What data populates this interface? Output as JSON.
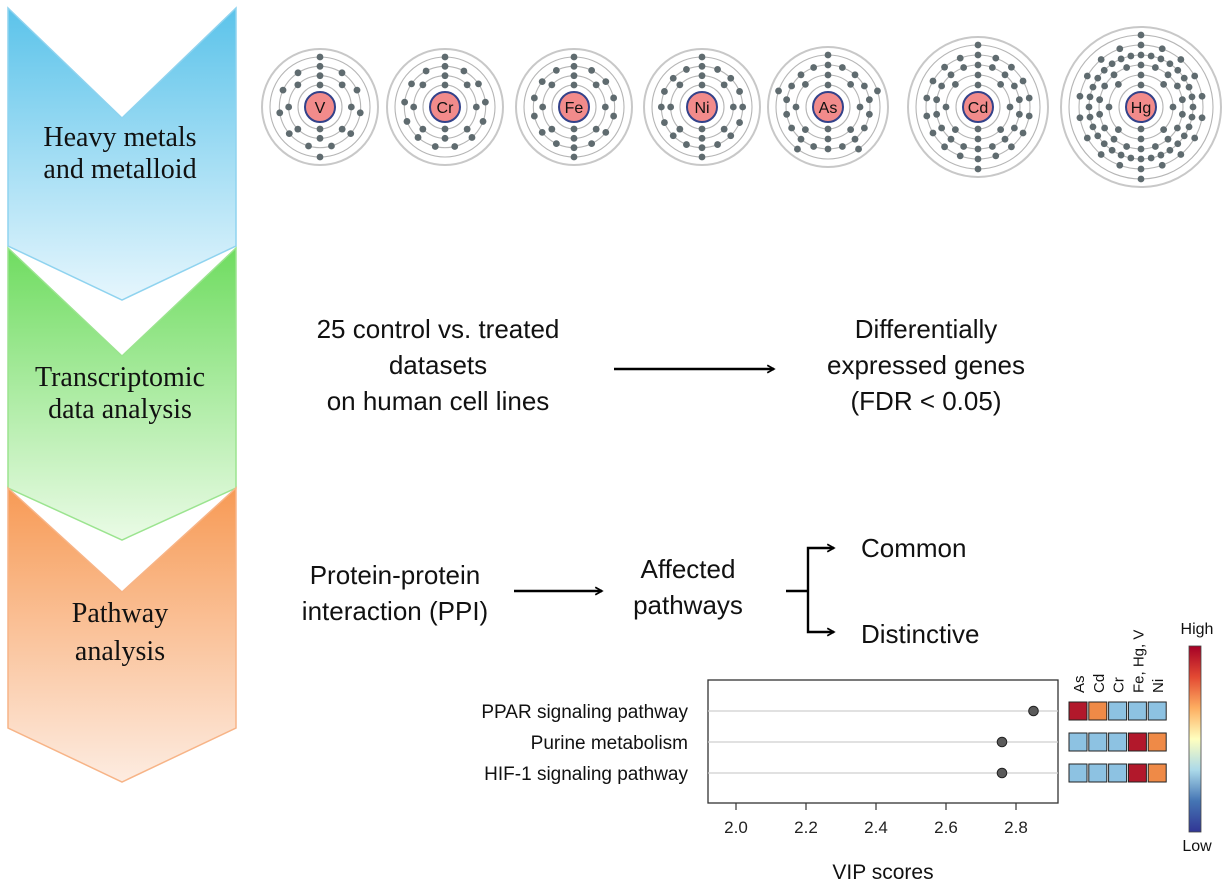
{
  "stages": [
    {
      "lines": [
        "Heavy metals",
        "and metalloid"
      ],
      "color_top": "#5bc3ea",
      "color_bottom": "#e6f6fd",
      "border": "#8fd3ef"
    },
    {
      "lines": [
        "Transcriptomic",
        "data analysis"
      ],
      "color_top": "#6fdc60",
      "color_bottom": "#eafbe6",
      "border": "#9be48f"
    },
    {
      "lines": [
        "Pathway",
        "analysis"
      ],
      "color_top": "#f79a55",
      "color_bottom": "#fdece1",
      "border": "#f7b487"
    }
  ],
  "atoms": [
    {
      "symbol": "V",
      "shells": [
        2,
        8,
        11,
        2
      ]
    },
    {
      "symbol": "Cr",
      "shells": [
        2,
        8,
        13,
        1
      ]
    },
    {
      "symbol": "Fe",
      "shells": [
        2,
        8,
        14,
        2
      ]
    },
    {
      "symbol": "Ni",
      "shells": [
        2,
        8,
        16,
        2
      ]
    },
    {
      "symbol": "As",
      "shells": [
        2,
        8,
        18,
        5
      ]
    },
    {
      "symbol": "Cd",
      "shells": [
        2,
        8,
        18,
        18,
        2
      ]
    },
    {
      "symbol": "Hg",
      "shells": [
        2,
        8,
        18,
        32,
        18,
        2
      ]
    }
  ],
  "transcriptomic": {
    "input_lines": [
      "25 control vs. treated",
      "datasets",
      "on human cell lines"
    ],
    "output_lines": [
      "Differentially",
      "expressed genes",
      "(FDR < 0.05)"
    ]
  },
  "pathway": {
    "input_lines": [
      "Protein-protein",
      "interaction (PPI)"
    ],
    "middle_lines": [
      "Affected",
      "pathways"
    ],
    "branch_top": "Common",
    "branch_bottom": "Distinctive"
  },
  "chart_data": {
    "type": "scatter",
    "title": "",
    "xlabel": "VIP scores",
    "ylabel": "",
    "xlim": [
      1.92,
      2.92
    ],
    "xticks": [
      2.0,
      2.2,
      2.4,
      2.6,
      2.8
    ],
    "xtick_labels": [
      "2.0",
      "2.2",
      "2.4",
      "2.6",
      "2.8"
    ],
    "categories": [
      "PPAR signaling pathway",
      "Purine metabolism",
      "HIF-1 signaling pathway"
    ],
    "values": [
      2.85,
      2.76,
      2.76
    ],
    "heatmap": {
      "columns": [
        "As",
        "Cd",
        "Cr",
        "Fe, Hg, V",
        "Ni"
      ],
      "rows": [
        [
          "high",
          "mid",
          "low",
          "low",
          "low"
        ],
        [
          "low",
          "low",
          "low",
          "high",
          "mid"
        ],
        [
          "low",
          "low",
          "low",
          "high",
          "mid"
        ]
      ],
      "colors": {
        "high": "#b2182b",
        "mid": "#ef8a47",
        "low": "#8dc2e2"
      }
    },
    "colorbar": {
      "high_label": "High",
      "low_label": "Low",
      "gradient": [
        "#a50026",
        "#e34a33",
        "#fdae61",
        "#ffffbf",
        "#abd9e9",
        "#4575b4",
        "#313695"
      ]
    }
  }
}
